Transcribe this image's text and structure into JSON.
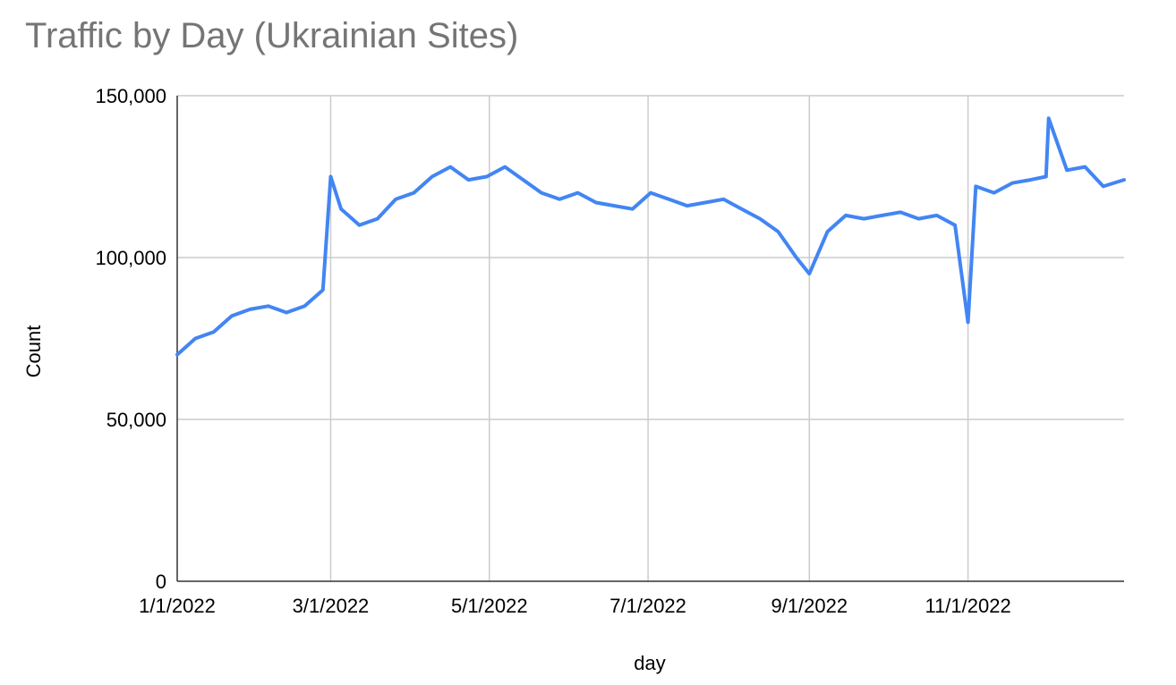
{
  "chart_data": {
    "type": "line",
    "title": "Traffic by Day (Ukrainian Sites)",
    "xlabel": "day",
    "ylabel": "Count",
    "x_tick_labels": [
      "1/1/2022",
      "3/1/2022",
      "5/1/2022",
      "7/1/2022",
      "9/1/2022",
      "11/1/2022"
    ],
    "y_tick_labels": [
      "0",
      "50,000",
      "100,000",
      "150,000"
    ],
    "ylim": [
      0,
      150000
    ],
    "xlim": [
      "2022-01-01",
      "2022-12-31"
    ],
    "grid": true,
    "line_color": "#4285f4",
    "series": [
      {
        "name": "",
        "points": [
          [
            "2022-01-01",
            70000
          ],
          [
            "2022-01-08",
            75000
          ],
          [
            "2022-01-15",
            77000
          ],
          [
            "2022-01-22",
            82000
          ],
          [
            "2022-01-29",
            84000
          ],
          [
            "2022-02-05",
            85000
          ],
          [
            "2022-02-12",
            83000
          ],
          [
            "2022-02-19",
            85000
          ],
          [
            "2022-02-26",
            90000
          ],
          [
            "2022-03-01",
            125000
          ],
          [
            "2022-03-05",
            115000
          ],
          [
            "2022-03-12",
            110000
          ],
          [
            "2022-03-19",
            112000
          ],
          [
            "2022-03-26",
            118000
          ],
          [
            "2022-04-02",
            120000
          ],
          [
            "2022-04-09",
            125000
          ],
          [
            "2022-04-16",
            128000
          ],
          [
            "2022-04-23",
            124000
          ],
          [
            "2022-04-30",
            125000
          ],
          [
            "2022-05-07",
            128000
          ],
          [
            "2022-05-14",
            124000
          ],
          [
            "2022-05-21",
            120000
          ],
          [
            "2022-05-28",
            118000
          ],
          [
            "2022-06-04",
            120000
          ],
          [
            "2022-06-11",
            117000
          ],
          [
            "2022-06-18",
            116000
          ],
          [
            "2022-06-25",
            115000
          ],
          [
            "2022-07-02",
            120000
          ],
          [
            "2022-07-09",
            118000
          ],
          [
            "2022-07-16",
            116000
          ],
          [
            "2022-07-23",
            117000
          ],
          [
            "2022-07-30",
            118000
          ],
          [
            "2022-08-06",
            115000
          ],
          [
            "2022-08-13",
            112000
          ],
          [
            "2022-08-20",
            108000
          ],
          [
            "2022-08-27",
            100000
          ],
          [
            "2022-09-01",
            95000
          ],
          [
            "2022-09-08",
            108000
          ],
          [
            "2022-09-15",
            113000
          ],
          [
            "2022-09-22",
            112000
          ],
          [
            "2022-09-29",
            113000
          ],
          [
            "2022-10-06",
            114000
          ],
          [
            "2022-10-13",
            112000
          ],
          [
            "2022-10-20",
            113000
          ],
          [
            "2022-10-27",
            110000
          ],
          [
            "2022-11-01",
            80000
          ],
          [
            "2022-11-04",
            122000
          ],
          [
            "2022-11-11",
            120000
          ],
          [
            "2022-11-18",
            123000
          ],
          [
            "2022-11-25",
            124000
          ],
          [
            "2022-12-01",
            125000
          ],
          [
            "2022-12-02",
            143000
          ],
          [
            "2022-12-09",
            127000
          ],
          [
            "2022-12-16",
            128000
          ],
          [
            "2022-12-23",
            122000
          ],
          [
            "2022-12-31",
            124000
          ]
        ]
      }
    ]
  }
}
